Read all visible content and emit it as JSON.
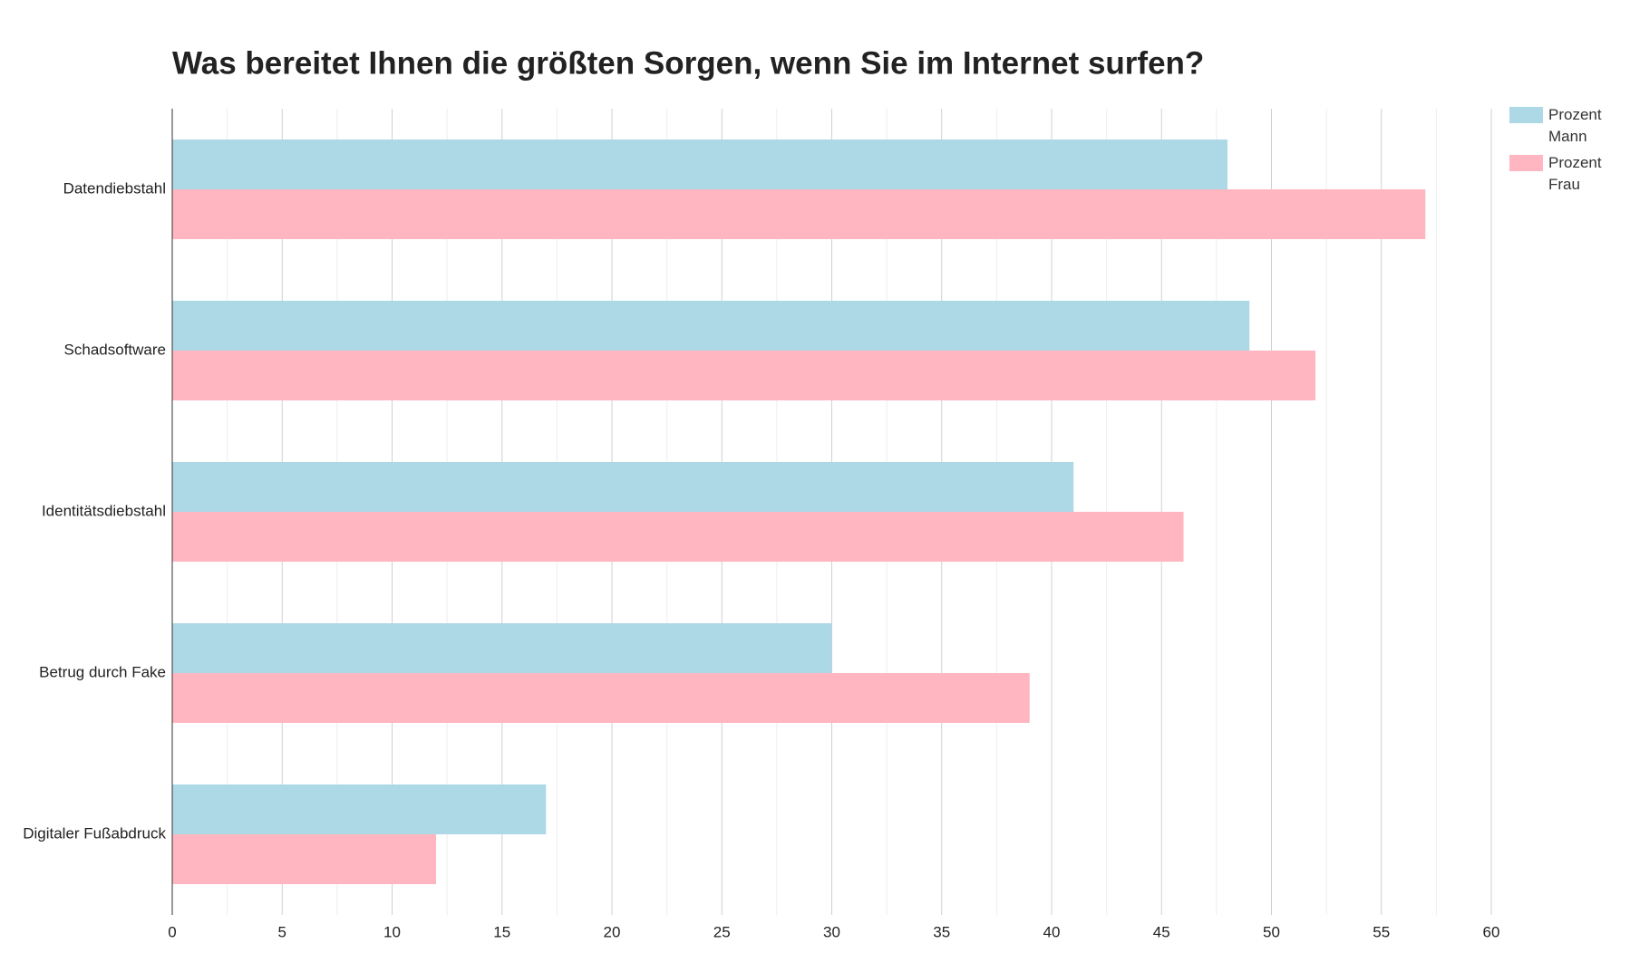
{
  "chart_data": {
    "type": "hbar",
    "title": "Was bereitet Ihnen die größten Sorgen, wenn Sie im Internet surfen?",
    "categories": [
      "Datendiebstahl",
      "Schadsoftware",
      "Identitätsdiebstahl",
      "Betrug durch Fake",
      "Digitaler Fußabdruck"
    ],
    "series": [
      {
        "name": "Prozent Mann",
        "color": "#add8e6",
        "values": [
          48,
          49,
          41,
          30,
          17
        ]
      },
      {
        "name": "Prozent Frau",
        "color": "#ffb6c1",
        "values": [
          57,
          52,
          46,
          39,
          12
        ]
      }
    ],
    "xlim": [
      0,
      60
    ],
    "xticks": [
      0,
      5,
      10,
      15,
      20,
      25,
      30,
      35,
      40,
      45,
      50,
      55,
      60
    ],
    "grid": true,
    "minor_grid": true,
    "legend": "right",
    "title_color": "#77d67a"
  }
}
